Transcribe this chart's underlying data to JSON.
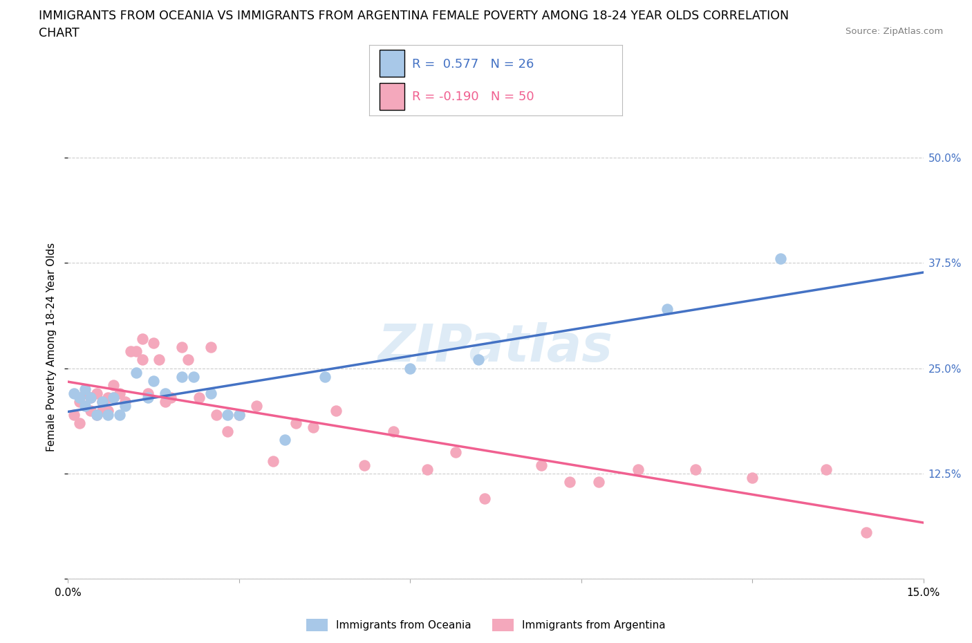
{
  "title_line1": "IMMIGRANTS FROM OCEANIA VS IMMIGRANTS FROM ARGENTINA FEMALE POVERTY AMONG 18-24 YEAR OLDS CORRELATION",
  "title_line2": "CHART",
  "source": "Source: ZipAtlas.com",
  "ylabel": "Female Poverty Among 18-24 Year Olds",
  "xlim": [
    0.0,
    0.15
  ],
  "ylim": [
    0.0,
    0.55
  ],
  "ytick_positions": [
    0.0,
    0.125,
    0.25,
    0.375,
    0.5
  ],
  "ytick_labels": [
    "",
    "12.5%",
    "25.0%",
    "37.5%",
    "50.0%"
  ],
  "oceania_R": 0.577,
  "oceania_N": 26,
  "argentina_R": -0.19,
  "argentina_N": 50,
  "oceania_color": "#a8c8e8",
  "argentina_color": "#f4a8bc",
  "oceania_line_color": "#4472c4",
  "argentina_line_color": "#f06090",
  "watermark_color": "#c8dff0",
  "oceania_points_x": [
    0.001,
    0.002,
    0.003,
    0.003,
    0.004,
    0.005,
    0.006,
    0.007,
    0.008,
    0.009,
    0.01,
    0.012,
    0.014,
    0.015,
    0.017,
    0.02,
    0.022,
    0.025,
    0.028,
    0.03,
    0.038,
    0.045,
    0.06,
    0.072,
    0.105,
    0.125
  ],
  "oceania_points_y": [
    0.22,
    0.215,
    0.205,
    0.225,
    0.215,
    0.195,
    0.21,
    0.195,
    0.215,
    0.195,
    0.205,
    0.245,
    0.215,
    0.235,
    0.22,
    0.24,
    0.24,
    0.22,
    0.195,
    0.195,
    0.165,
    0.24,
    0.25,
    0.26,
    0.32,
    0.38
  ],
  "argentina_points_x": [
    0.001,
    0.002,
    0.002,
    0.003,
    0.004,
    0.004,
    0.005,
    0.005,
    0.006,
    0.006,
    0.007,
    0.007,
    0.008,
    0.008,
    0.009,
    0.01,
    0.011,
    0.012,
    0.013,
    0.013,
    0.014,
    0.015,
    0.016,
    0.017,
    0.018,
    0.02,
    0.021,
    0.023,
    0.025,
    0.026,
    0.028,
    0.03,
    0.033,
    0.036,
    0.04,
    0.043,
    0.047,
    0.052,
    0.057,
    0.063,
    0.068,
    0.073,
    0.083,
    0.088,
    0.093,
    0.1,
    0.11,
    0.12,
    0.133,
    0.14
  ],
  "argentina_points_y": [
    0.195,
    0.185,
    0.21,
    0.22,
    0.2,
    0.215,
    0.195,
    0.22,
    0.2,
    0.21,
    0.215,
    0.2,
    0.215,
    0.23,
    0.22,
    0.21,
    0.27,
    0.27,
    0.285,
    0.26,
    0.22,
    0.28,
    0.26,
    0.21,
    0.215,
    0.275,
    0.26,
    0.215,
    0.275,
    0.195,
    0.175,
    0.195,
    0.205,
    0.14,
    0.185,
    0.18,
    0.2,
    0.135,
    0.175,
    0.13,
    0.15,
    0.095,
    0.135,
    0.115,
    0.115,
    0.13,
    0.13,
    0.12,
    0.13,
    0.055
  ]
}
